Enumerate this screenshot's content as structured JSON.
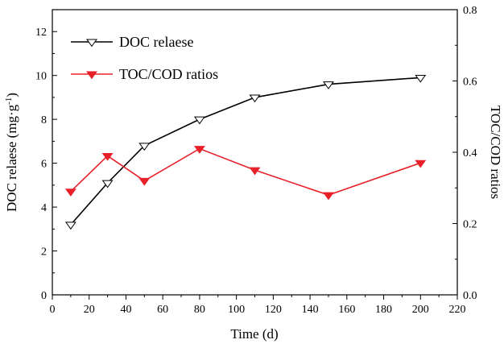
{
  "chart_data": {
    "type": "line",
    "title": "",
    "xlabel": "Time (d)",
    "ylabel_left": "DOC relaese (mg·g",
    "ylabel_left_sup": "-1",
    "ylabel_left_close": ")",
    "ylabel_right": "TOC/COD ratios",
    "xlim": [
      0,
      220
    ],
    "ylim_left": [
      0,
      13
    ],
    "ylim_right": [
      0,
      0.8
    ],
    "x_ticks": [
      0,
      20,
      40,
      60,
      80,
      100,
      120,
      140,
      160,
      180,
      200,
      220
    ],
    "y_left_ticks": [
      0,
      2,
      4,
      6,
      8,
      10,
      12
    ],
    "y_right_ticks": [
      "0.0",
      "0.2",
      "0.4",
      "0.6",
      "0.8"
    ],
    "legend_position": "top-left",
    "series": [
      {
        "name": "DOC relaese",
        "axis": "left",
        "color": "#000000",
        "marker": "open-triangle-down",
        "x": [
          10,
          30,
          50,
          80,
          110,
          150,
          200
        ],
        "values": [
          3.2,
          5.1,
          6.8,
          8.0,
          9.0,
          9.6,
          9.9
        ]
      },
      {
        "name": "TOC/COD ratios",
        "axis": "right",
        "color": "#e8202a",
        "marker": "filled-triangle-down",
        "x": [
          10,
          30,
          50,
          80,
          110,
          150,
          200
        ],
        "values": [
          0.29,
          0.39,
          0.32,
          0.41,
          0.35,
          0.28,
          0.37
        ]
      }
    ]
  }
}
